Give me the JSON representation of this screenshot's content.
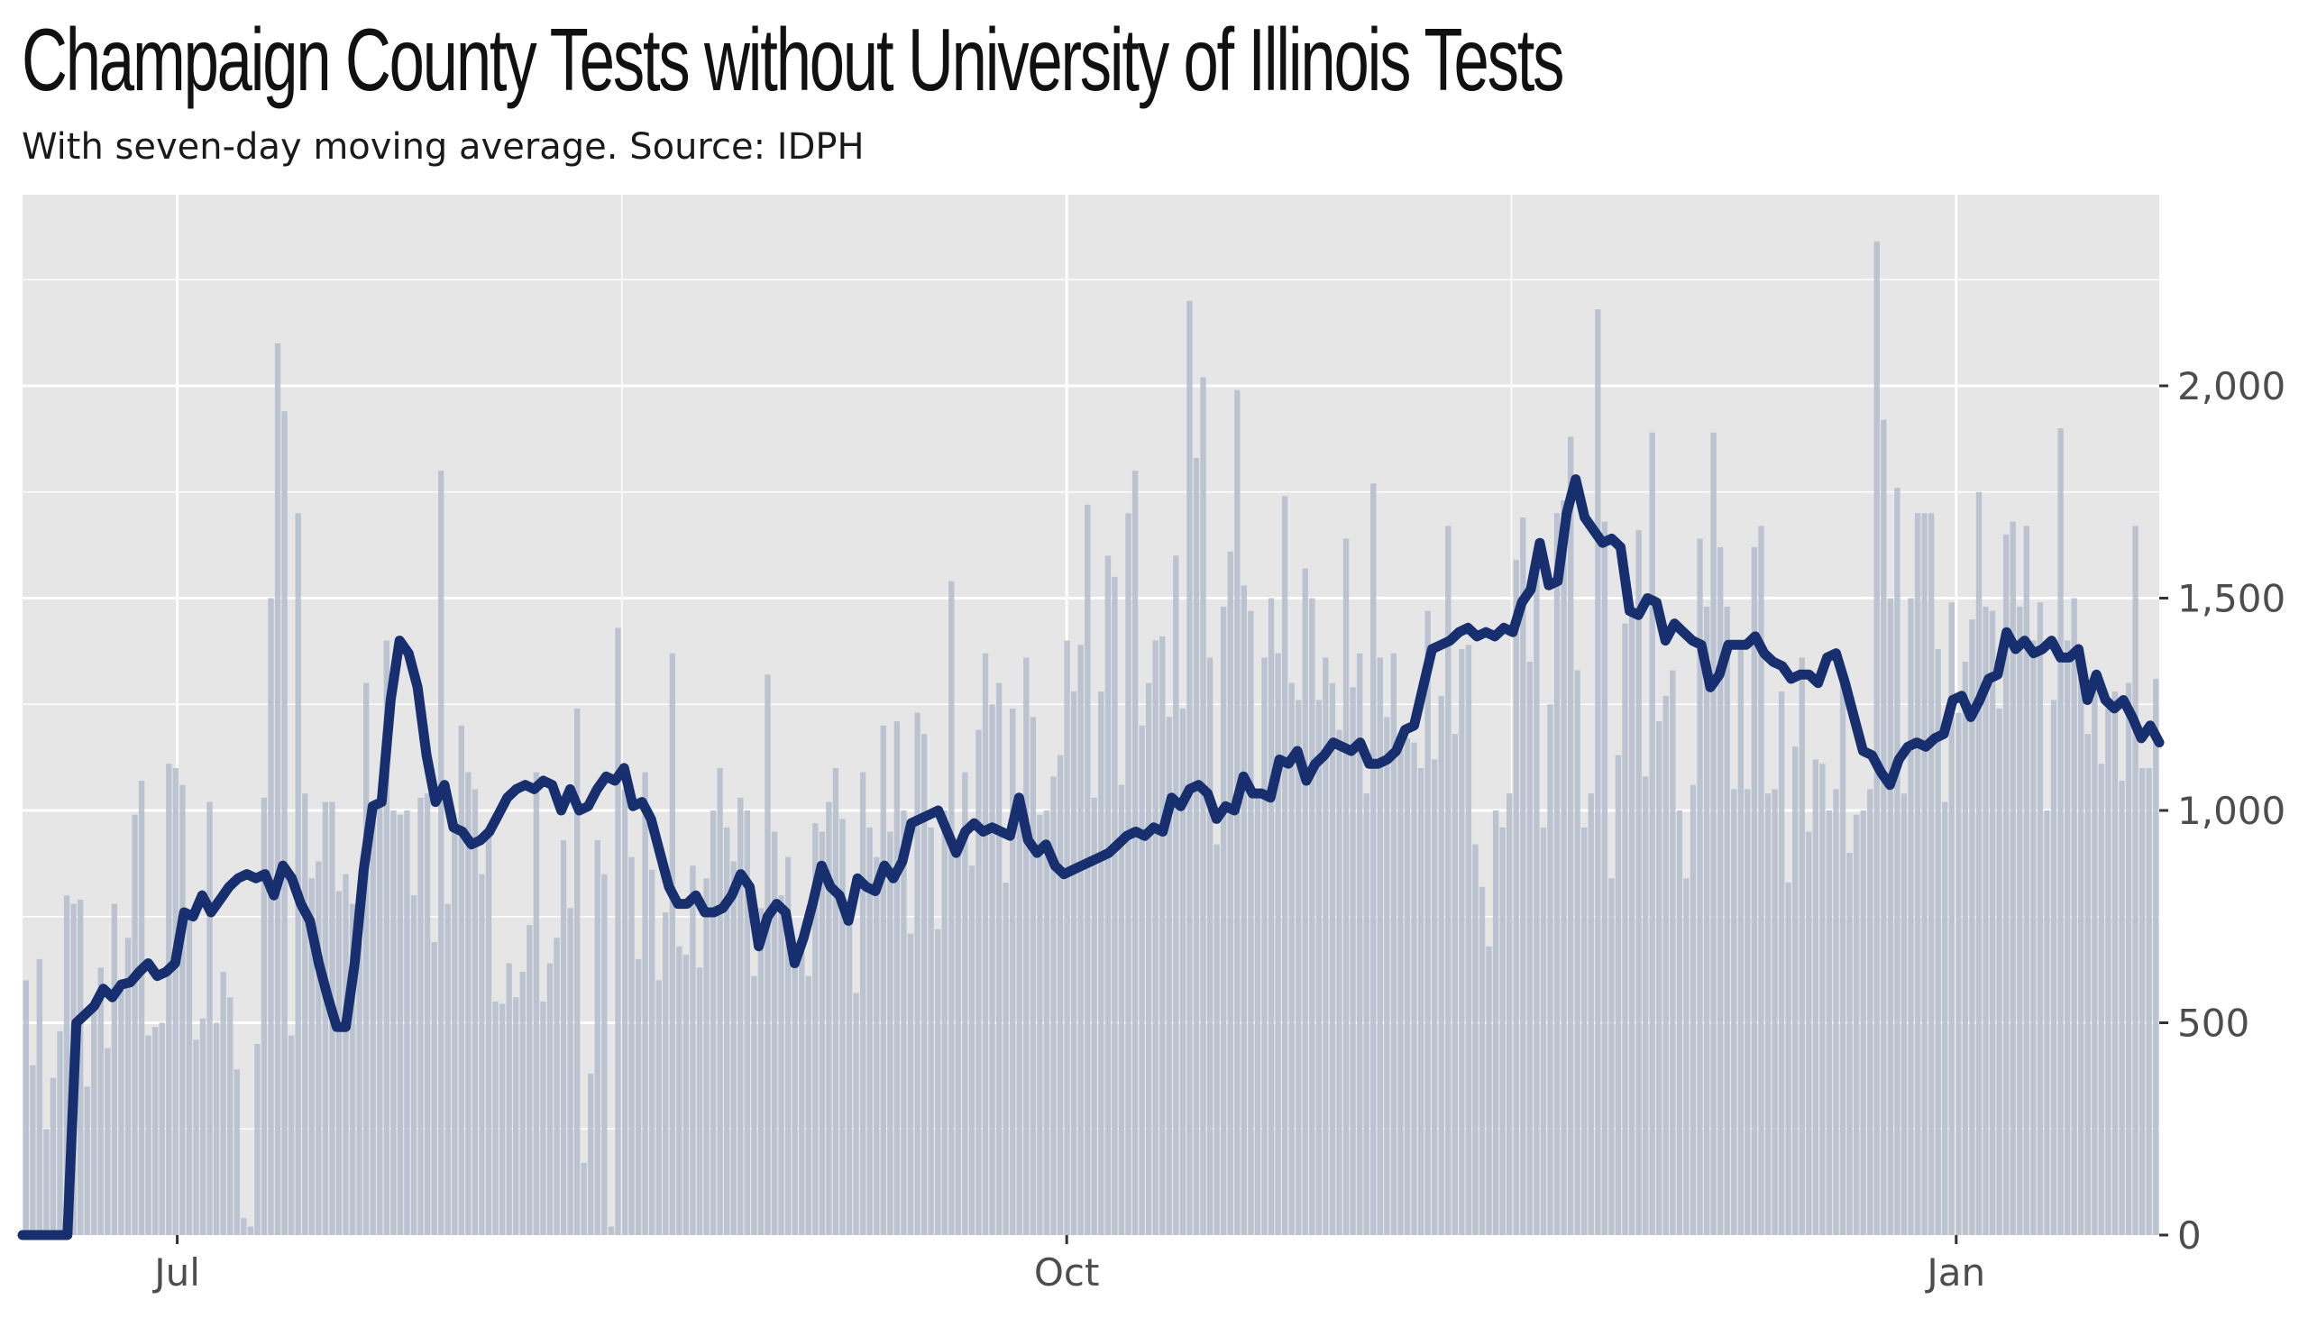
{
  "chart_data": {
    "type": "bar",
    "title": "Champaign County Tests without University of Illinois Tests",
    "subtitle": "With seven-day moving average. Source: IDPH",
    "xlabel": "",
    "ylabel": "",
    "x_start": "2020-06-15",
    "x_end": "2021-01-22",
    "x_ticks": [
      {
        "label": "Jul",
        "date": "2020-07-01"
      },
      {
        "label": "Oct",
        "date": "2020-10-01"
      },
      {
        "label": "Jan",
        "date": "2021-01-01"
      }
    ],
    "y_ticks": [
      {
        "label": "0",
        "value": 0
      },
      {
        "label": "500",
        "value": 500
      },
      {
        "label": "1,000",
        "value": 1000
      },
      {
        "label": "1,500",
        "value": 1500
      },
      {
        "label": "2,000",
        "value": 2000
      }
    ],
    "ylim": [
      0,
      2450
    ],
    "grid": true,
    "y_axis_side": "right",
    "colors": {
      "panel_background": "#e6e6e6",
      "grid": "#ffffff",
      "bars": "#b3bccd",
      "line": "#172f6e"
    },
    "series": [
      {
        "kind": "bars",
        "values": [
          600,
          400,
          650,
          250,
          370,
          480,
          800,
          780,
          790,
          350,
          540,
          630,
          440,
          780,
          580,
          700,
          990,
          1070,
          470,
          490,
          500,
          1110,
          1100,
          1060,
          760,
          460,
          510,
          1020,
          500,
          620,
          560,
          390,
          40,
          20,
          450,
          1030,
          1500,
          2100,
          1940,
          470,
          1700,
          1040,
          840,
          880,
          1020,
          1020,
          810,
          850,
          780,
          690,
          1300,
          980,
          1010,
          1400,
          1000,
          990,
          1000,
          800,
          1030,
          1040,
          690,
          1800,
          780,
          950,
          1200,
          1090,
          1050,
          850,
          960,
          550,
          545,
          640,
          560,
          620,
          730,
          1090,
          550,
          640,
          700,
          930,
          770,
          1240,
          170,
          380,
          930,
          850,
          20,
          1430,
          1050,
          890,
          650,
          1090,
          860,
          600,
          760,
          1370,
          680,
          660,
          870,
          630,
          840,
          1000,
          1100,
          960,
          880,
          1030,
          1000,
          610,
          770,
          1320,
          950,
          800,
          890,
          660,
          690,
          610,
          970,
          950,
          1020,
          1100,
          980,
          770,
          570,
          1090,
          960,
          890,
          1200,
          950,
          1210,
          1000,
          710,
          1230,
          1180,
          960,
          720,
          1000,
          1540,
          900,
          1090,
          870,
          1190,
          1370,
          1250,
          1300,
          830,
          1240,
          1030,
          1360,
          1220,
          990,
          1000,
          1080,
          1130,
          1400,
          1280,
          1390,
          1720,
          1030,
          1280,
          1600,
          1550,
          1060,
          1700,
          1800,
          1200,
          1300,
          1400,
          1410,
          1220,
          1600,
          1240,
          2200,
          1830,
          2020,
          1360,
          920,
          1480,
          1610,
          1990,
          1530,
          1470,
          1040,
          1360,
          1500,
          1370,
          1740,
          1300,
          1260,
          1570,
          1500,
          1260,
          1360,
          1300,
          1190,
          1640,
          1290,
          1370,
          1040,
          1770,
          1360,
          1220,
          1370,
          1170,
          1170,
          1160,
          1100,
          1470,
          1120,
          1270,
          1670,
          1180,
          1380,
          1390,
          920,
          820,
          680,
          1000,
          960,
          1040,
          1590,
          1690,
          1350,
          1610,
          960,
          1250,
          1700,
          1730,
          1880,
          1330,
          960,
          1040,
          2180,
          1680,
          840,
          1130,
          1440,
          1480,
          1660,
          1080,
          1890,
          1210,
          1270,
          1330,
          1000,
          840,
          1060,
          1640,
          1480,
          1890,
          1620,
          1480,
          1050,
          1380,
          1050,
          1620,
          1670,
          1040,
          1050,
          1280,
          830,
          1150,
          1360,
          950,
          1120,
          1110,
          1000,
          1050,
          1310,
          900,
          990,
          1000,
          1050,
          2340,
          1920,
          1500,
          1760,
          1040,
          1500,
          1700,
          1700,
          1700,
          1380,
          1020,
          1490,
          1230,
          1350,
          1450,
          1750,
          1480,
          1470,
          1240,
          1650,
          1680,
          1480,
          1670,
          1400,
          1490,
          1000,
          1260,
          1900,
          1400,
          1500,
          1350,
          1180,
          1310,
          1110,
          1240,
          1280,
          1070,
          1300,
          1670,
          1100,
          1100,
          1310
        ]
      },
      {
        "kind": "line",
        "points": [
          [
            0,
            0
          ],
          [
            5,
            0
          ],
          [
            6,
            500
          ],
          [
            7,
            520
          ],
          [
            8,
            540
          ],
          [
            9,
            580
          ],
          [
            10,
            560
          ],
          [
            11,
            590
          ],
          [
            12,
            595
          ],
          [
            13,
            620
          ],
          [
            14,
            640
          ],
          [
            15,
            610
          ],
          [
            16,
            620
          ],
          [
            17,
            640
          ],
          [
            18,
            760
          ],
          [
            19,
            750
          ],
          [
            20,
            800
          ],
          [
            21,
            760
          ],
          [
            22,
            790
          ],
          [
            23,
            820
          ],
          [
            24,
            840
          ],
          [
            25,
            850
          ],
          [
            26,
            840
          ],
          [
            27,
            850
          ],
          [
            28,
            800
          ],
          [
            29,
            870
          ],
          [
            30,
            840
          ],
          [
            31,
            780
          ],
          [
            32,
            740
          ],
          [
            33,
            640
          ],
          [
            34,
            560
          ],
          [
            35,
            490
          ],
          [
            36,
            490
          ],
          [
            37,
            640
          ],
          [
            38,
            860
          ],
          [
            39,
            1010
          ],
          [
            40,
            1020
          ],
          [
            41,
            1260
          ],
          [
            42,
            1400
          ],
          [
            43,
            1370
          ],
          [
            44,
            1290
          ],
          [
            45,
            1130
          ],
          [
            46,
            1020
          ],
          [
            47,
            1060
          ],
          [
            48,
            960
          ],
          [
            49,
            950
          ],
          [
            50,
            920
          ],
          [
            51,
            930
          ],
          [
            52,
            950
          ],
          [
            53,
            990
          ],
          [
            54,
            1030
          ],
          [
            55,
            1050
          ],
          [
            56,
            1060
          ],
          [
            57,
            1050
          ],
          [
            58,
            1070
          ],
          [
            59,
            1060
          ],
          [
            60,
            1000
          ],
          [
            61,
            1050
          ],
          [
            62,
            1000
          ],
          [
            63,
            1010
          ],
          [
            64,
            1050
          ],
          [
            65,
            1080
          ],
          [
            66,
            1070
          ],
          [
            67,
            1100
          ],
          [
            68,
            1010
          ],
          [
            69,
            1020
          ],
          [
            70,
            980
          ],
          [
            71,
            900
          ],
          [
            72,
            820
          ],
          [
            73,
            780
          ],
          [
            74,
            780
          ],
          [
            75,
            800
          ],
          [
            76,
            760
          ],
          [
            77,
            760
          ],
          [
            78,
            770
          ],
          [
            79,
            800
          ],
          [
            80,
            850
          ],
          [
            81,
            820
          ],
          [
            82,
            680
          ],
          [
            83,
            750
          ],
          [
            84,
            780
          ],
          [
            85,
            760
          ],
          [
            86,
            640
          ],
          [
            87,
            700
          ],
          [
            88,
            780
          ],
          [
            89,
            870
          ],
          [
            90,
            820
          ],
          [
            91,
            800
          ],
          [
            92,
            740
          ],
          [
            93,
            840
          ],
          [
            94,
            820
          ],
          [
            95,
            810
          ],
          [
            96,
            870
          ],
          [
            97,
            840
          ],
          [
            98,
            880
          ],
          [
            99,
            970
          ],
          [
            100,
            980
          ],
          [
            101,
            990
          ],
          [
            102,
            1000
          ],
          [
            103,
            950
          ],
          [
            104,
            900
          ],
          [
            105,
            950
          ],
          [
            106,
            970
          ],
          [
            107,
            950
          ],
          [
            108,
            960
          ],
          [
            109,
            950
          ],
          [
            110,
            940
          ],
          [
            111,
            1030
          ],
          [
            112,
            930
          ],
          [
            113,
            900
          ],
          [
            114,
            920
          ],
          [
            115,
            870
          ],
          [
            116,
            850
          ],
          [
            117,
            860
          ],
          [
            118,
            870
          ],
          [
            119,
            880
          ],
          [
            120,
            890
          ],
          [
            121,
            900
          ],
          [
            122,
            920
          ],
          [
            123,
            940
          ],
          [
            124,
            950
          ],
          [
            125,
            940
          ],
          [
            126,
            960
          ],
          [
            127,
            950
          ],
          [
            128,
            1030
          ],
          [
            129,
            1010
          ],
          [
            130,
            1050
          ],
          [
            131,
            1060
          ],
          [
            132,
            1040
          ],
          [
            133,
            980
          ],
          [
            134,
            1010
          ],
          [
            135,
            1000
          ],
          [
            136,
            1080
          ],
          [
            137,
            1040
          ],
          [
            138,
            1040
          ],
          [
            139,
            1030
          ],
          [
            140,
            1120
          ],
          [
            141,
            1110
          ],
          [
            142,
            1140
          ],
          [
            143,
            1070
          ],
          [
            144,
            1110
          ],
          [
            145,
            1130
          ],
          [
            146,
            1160
          ],
          [
            147,
            1150
          ],
          [
            148,
            1140
          ],
          [
            149,
            1160
          ],
          [
            150,
            1110
          ],
          [
            151,
            1110
          ],
          [
            152,
            1120
          ],
          [
            153,
            1140
          ],
          [
            154,
            1190
          ],
          [
            155,
            1200
          ],
          [
            156,
            1290
          ],
          [
            157,
            1380
          ],
          [
            158,
            1390
          ],
          [
            159,
            1400
          ],
          [
            160,
            1420
          ],
          [
            161,
            1430
          ],
          [
            162,
            1410
          ],
          [
            163,
            1420
          ],
          [
            164,
            1410
          ],
          [
            165,
            1430
          ],
          [
            166,
            1420
          ],
          [
            167,
            1490
          ],
          [
            168,
            1520
          ],
          [
            169,
            1630
          ],
          [
            170,
            1530
          ],
          [
            171,
            1540
          ],
          [
            172,
            1700
          ],
          [
            173,
            1780
          ],
          [
            174,
            1690
          ],
          [
            175,
            1660
          ],
          [
            176,
            1630
          ],
          [
            177,
            1640
          ],
          [
            178,
            1620
          ],
          [
            179,
            1470
          ],
          [
            180,
            1460
          ],
          [
            181,
            1500
          ],
          [
            182,
            1490
          ],
          [
            183,
            1400
          ],
          [
            184,
            1440
          ],
          [
            185,
            1420
          ],
          [
            186,
            1400
          ],
          [
            187,
            1390
          ],
          [
            188,
            1290
          ],
          [
            189,
            1320
          ],
          [
            190,
            1390
          ],
          [
            191,
            1390
          ],
          [
            192,
            1390
          ],
          [
            193,
            1410
          ],
          [
            194,
            1370
          ],
          [
            195,
            1350
          ],
          [
            196,
            1340
          ],
          [
            197,
            1310
          ],
          [
            198,
            1320
          ],
          [
            199,
            1320
          ],
          [
            200,
            1300
          ],
          [
            201,
            1360
          ],
          [
            202,
            1370
          ],
          [
            203,
            1300
          ],
          [
            204,
            1220
          ],
          [
            205,
            1140
          ],
          [
            206,
            1130
          ],
          [
            207,
            1090
          ],
          [
            208,
            1060
          ],
          [
            209,
            1120
          ],
          [
            210,
            1150
          ],
          [
            211,
            1160
          ],
          [
            212,
            1150
          ],
          [
            213,
            1170
          ],
          [
            214,
            1180
          ],
          [
            215,
            1260
          ],
          [
            216,
            1270
          ],
          [
            217,
            1220
          ],
          [
            218,
            1260
          ],
          [
            219,
            1310
          ],
          [
            220,
            1320
          ],
          [
            221,
            1420
          ],
          [
            222,
            1380
          ],
          [
            223,
            1400
          ],
          [
            224,
            1370
          ],
          [
            225,
            1380
          ],
          [
            226,
            1400
          ],
          [
            227,
            1360
          ],
          [
            228,
            1360
          ],
          [
            229,
            1380
          ],
          [
            230,
            1260
          ],
          [
            231,
            1320
          ],
          [
            232,
            1260
          ],
          [
            233,
            1240
          ],
          [
            234,
            1260
          ],
          [
            235,
            1220
          ],
          [
            236,
            1170
          ],
          [
            237,
            1200
          ],
          [
            238,
            1160
          ]
        ]
      }
    ]
  }
}
